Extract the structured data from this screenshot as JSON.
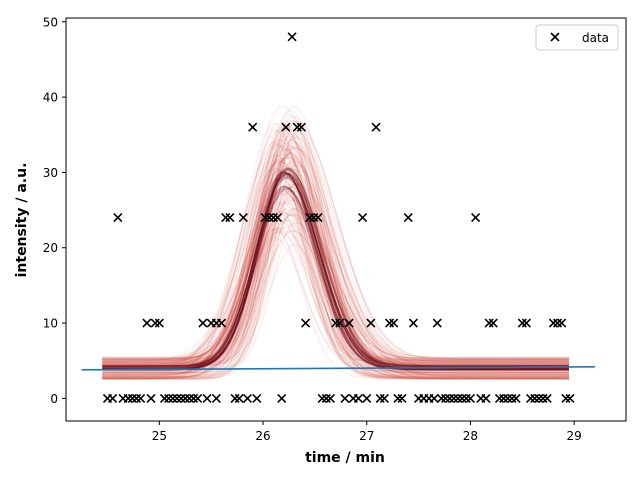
{
  "chart_data": {
    "type": "scatter",
    "xlabel": "time / min",
    "ylabel": "intensity / a.u.",
    "xlim": [
      24.1,
      29.5
    ],
    "ylim": [
      -3,
      50.5
    ],
    "xticks": [
      25,
      26,
      27,
      28,
      29
    ],
    "xtick_labels": [
      "25",
      "26",
      "27",
      "28",
      "29"
    ],
    "yticks": [
      0,
      10,
      20,
      30,
      40,
      50
    ],
    "ytick_labels": [
      "0",
      "10",
      "20",
      "30",
      "40",
      "50"
    ],
    "grid": false,
    "legend": {
      "placement": "top-right",
      "entries": [
        "data"
      ]
    },
    "colors": {
      "scatter": "#000000",
      "baseline": "#1f77b4",
      "ensemble": "#cc2a1f",
      "ensemble_dark": "#67000d"
    },
    "series": [
      {
        "name": "data",
        "marker": "x",
        "points": [
          [
            24.5,
            0
          ],
          [
            24.55,
            0
          ],
          [
            24.6,
            24
          ],
          [
            24.65,
            0
          ],
          [
            24.7,
            0
          ],
          [
            24.74,
            0
          ],
          [
            24.78,
            0
          ],
          [
            24.82,
            0
          ],
          [
            24.88,
            10
          ],
          [
            24.92,
            0
          ],
          [
            24.96,
            10
          ],
          [
            25.0,
            10
          ],
          [
            25.05,
            0
          ],
          [
            25.09,
            0
          ],
          [
            25.13,
            0
          ],
          [
            25.17,
            0
          ],
          [
            25.21,
            0
          ],
          [
            25.25,
            0
          ],
          [
            25.29,
            0
          ],
          [
            25.33,
            0
          ],
          [
            25.37,
            0
          ],
          [
            25.42,
            10
          ],
          [
            25.46,
            0
          ],
          [
            25.5,
            10
          ],
          [
            25.55,
            10
          ],
          [
            25.55,
            0
          ],
          [
            25.6,
            10
          ],
          [
            25.64,
            24
          ],
          [
            25.68,
            24
          ],
          [
            25.73,
            0
          ],
          [
            25.77,
            0
          ],
          [
            25.81,
            24
          ],
          [
            25.85,
            0
          ],
          [
            25.9,
            36
          ],
          [
            25.94,
            0
          ],
          [
            26.02,
            24
          ],
          [
            26.06,
            24
          ],
          [
            26.1,
            24
          ],
          [
            26.14,
            24
          ],
          [
            26.18,
            0
          ],
          [
            26.22,
            36
          ],
          [
            26.28,
            48
          ],
          [
            26.33,
            36
          ],
          [
            26.37,
            36
          ],
          [
            26.41,
            10
          ],
          [
            26.45,
            24
          ],
          [
            26.49,
            24
          ],
          [
            26.53,
            24
          ],
          [
            26.57,
            0
          ],
          [
            26.61,
            0
          ],
          [
            26.65,
            0
          ],
          [
            26.7,
            10
          ],
          [
            26.74,
            10
          ],
          [
            26.79,
            0
          ],
          [
            26.83,
            10
          ],
          [
            26.87,
            0
          ],
          [
            26.92,
            0
          ],
          [
            26.96,
            24
          ],
          [
            27.0,
            0
          ],
          [
            27.04,
            10
          ],
          [
            27.09,
            36
          ],
          [
            27.13,
            0
          ],
          [
            27.17,
            0
          ],
          [
            27.22,
            10
          ],
          [
            27.26,
            10
          ],
          [
            27.3,
            0
          ],
          [
            27.34,
            0
          ],
          [
            27.4,
            24
          ],
          [
            27.45,
            10
          ],
          [
            27.5,
            0
          ],
          [
            27.55,
            0
          ],
          [
            27.6,
            0
          ],
          [
            27.65,
            0
          ],
          [
            27.68,
            10
          ],
          [
            27.72,
            0
          ],
          [
            27.76,
            0
          ],
          [
            27.8,
            0
          ],
          [
            27.84,
            0
          ],
          [
            27.88,
            0
          ],
          [
            27.92,
            0
          ],
          [
            27.96,
            0
          ],
          [
            28.0,
            0
          ],
          [
            28.05,
            24
          ],
          [
            28.1,
            0
          ],
          [
            28.15,
            0
          ],
          [
            28.18,
            10
          ],
          [
            28.22,
            10
          ],
          [
            28.28,
            0
          ],
          [
            28.32,
            0
          ],
          [
            28.36,
            0
          ],
          [
            28.4,
            0
          ],
          [
            28.44,
            0
          ],
          [
            28.5,
            10
          ],
          [
            28.54,
            10
          ],
          [
            28.58,
            0
          ],
          [
            28.62,
            0
          ],
          [
            28.66,
            0
          ],
          [
            28.7,
            0
          ],
          [
            28.74,
            0
          ],
          [
            28.8,
            10
          ],
          [
            28.84,
            10
          ],
          [
            28.88,
            10
          ],
          [
            28.92,
            0
          ],
          [
            28.96,
            0
          ]
        ]
      },
      {
        "type": "line",
        "x": [
          24.25,
          29.2
        ],
        "y": [
          3.8,
          4.2
        ]
      }
    ],
    "ensemble": {
      "type": "line",
      "x_range": [
        24.45,
        28.95
      ],
      "peak_center": 26.22,
      "peak_height": 25.5,
      "baseline": 4.0,
      "width_rise": 0.28,
      "width_fall": 0.32
    }
  }
}
